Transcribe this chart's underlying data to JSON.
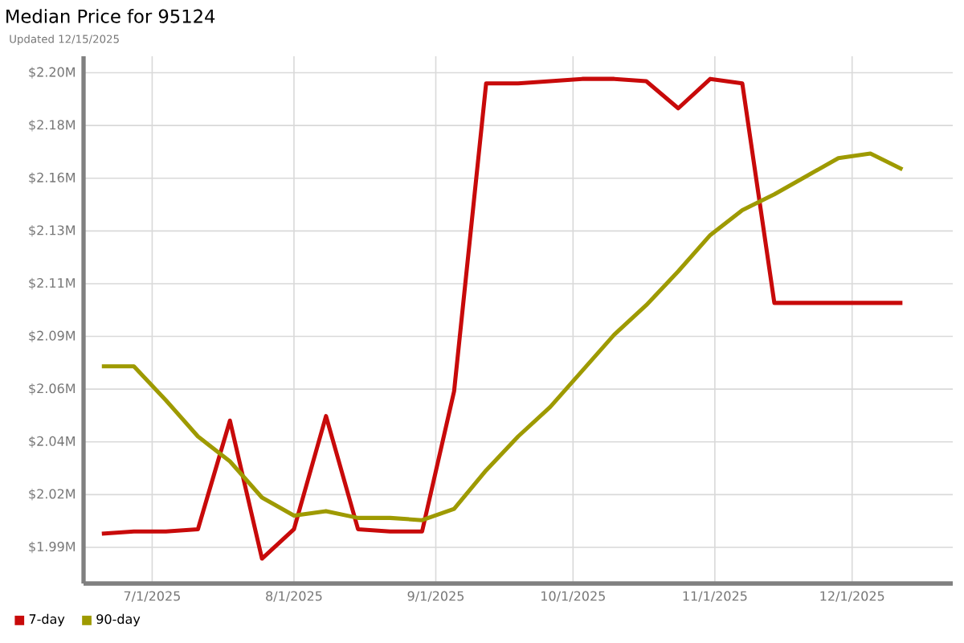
{
  "chart_data": {
    "type": "line",
    "title": "Median Price for 95124",
    "subtitle": "Updated 12/15/2025",
    "x": [
      "2025-06-20",
      "2025-06-27",
      "2025-07-04",
      "2025-07-11",
      "2025-07-18",
      "2025-07-25",
      "2025-08-01",
      "2025-08-08",
      "2025-08-15",
      "2025-08-22",
      "2025-08-29",
      "2025-09-05",
      "2025-09-12",
      "2025-09-19",
      "2025-09-26",
      "2025-10-03",
      "2025-10-10",
      "2025-10-17",
      "2025-10-24",
      "2025-10-31",
      "2025-11-07",
      "2025-11-14",
      "2025-11-21",
      "2025-11-28",
      "2025-12-05",
      "2025-12-12"
    ],
    "series": [
      {
        "name": "7-day",
        "color": "#c80a0a",
        "values": [
          1.999,
          2.0,
          2.0,
          2.001,
          2.049,
          1.988,
          2.001,
          2.051,
          2.001,
          2.0,
          2.0,
          2.062,
          2.198,
          2.198,
          2.199,
          2.2,
          2.2,
          2.199,
          2.187,
          2.2,
          2.198,
          2.101,
          2.101,
          2.101,
          2.101,
          2.101
        ]
      },
      {
        "name": "90-day",
        "color": "#9e9a00",
        "values": [
          2.073,
          2.073,
          2.058,
          2.042,
          2.031,
          2.015,
          2.007,
          2.009,
          2.006,
          2.006,
          2.005,
          2.01,
          2.027,
          2.042,
          2.055,
          2.071,
          2.087,
          2.1,
          2.115,
          2.131,
          2.142,
          2.149,
          2.157,
          2.165,
          2.167,
          2.16
        ]
      }
    ],
    "xlim": [
      "2025-06-16",
      "2025-12-23"
    ],
    "xticks": [
      {
        "value": "2025-07-01",
        "label": "7/1/2025"
      },
      {
        "value": "2025-08-01",
        "label": "8/1/2025"
      },
      {
        "value": "2025-09-01",
        "label": "9/1/2025"
      },
      {
        "value": "2025-10-01",
        "label": "10/1/2025"
      },
      {
        "value": "2025-11-01",
        "label": "11/1/2025"
      },
      {
        "value": "2025-12-01",
        "label": "12/1/2025"
      }
    ],
    "ylim": [
      1.977,
      2.21
    ],
    "yticks": [
      {
        "value": 1.993,
        "label": "$1.99M"
      },
      {
        "value": 2.0163,
        "label": "$2.02M"
      },
      {
        "value": 2.0396,
        "label": "$2.04M"
      },
      {
        "value": 2.0629,
        "label": "$2.06M"
      },
      {
        "value": 2.0862,
        "label": "$2.09M"
      },
      {
        "value": 2.1095,
        "label": "$2.11M"
      },
      {
        "value": 2.1328,
        "label": "$2.13M"
      },
      {
        "value": 2.1561,
        "label": "$2.16M"
      },
      {
        "value": 2.1794,
        "label": "$2.18M"
      },
      {
        "value": 2.2027,
        "label": "$2.20M"
      }
    ],
    "grid": true,
    "legend": "bottom"
  }
}
